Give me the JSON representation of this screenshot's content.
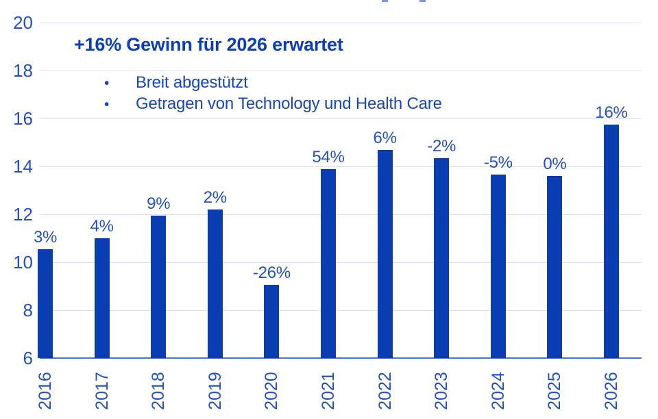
{
  "page": {
    "background": "#ffffff"
  },
  "colors": {
    "bar": "#0B3DB2",
    "axis_text": "#2250C8",
    "data_label": "#2250C8",
    "heading_text": "#0B3FB5",
    "bullet_text": "#1747BE",
    "gridline": "#D9E2F5",
    "axis_line": "#4C70CE",
    "title_fragment": "#7E97E3"
  },
  "annotation": {
    "heading": "+16% Gewinn für 2026 erwartet",
    "bullet_char": "•",
    "bullets": [
      "Breit abgestützt",
      "Getragen von Technology und Health Care"
    ]
  },
  "chart_data": {
    "type": "bar",
    "title": "",
    "xlabel": "",
    "ylabel": "",
    "categories": [
      "2016",
      "2017",
      "2018",
      "2019",
      "2020",
      "2021",
      "2022",
      "2023",
      "2024",
      "2025",
      "2026"
    ],
    "values": [
      10.55,
      11.0,
      11.95,
      12.2,
      9.05,
      13.9,
      14.7,
      14.35,
      13.65,
      13.6,
      15.75
    ],
    "bar_labels": [
      "3%",
      "4%",
      "9%",
      "2%",
      "-26%",
      "54%",
      "6%",
      "-2%",
      "-5%",
      "0%",
      "16%"
    ],
    "ylim": [
      6,
      20
    ],
    "yticks": [
      6,
      8,
      10,
      12,
      14,
      16,
      18,
      20
    ],
    "grid": true,
    "legend": "none",
    "bar_color": "#0B3DB2"
  }
}
